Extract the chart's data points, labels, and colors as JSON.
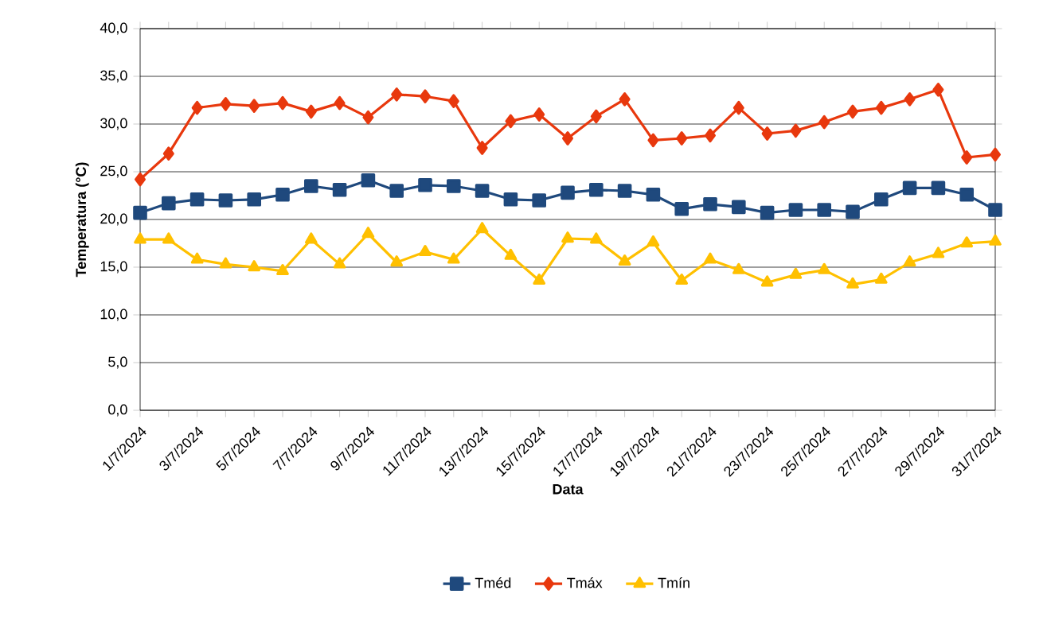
{
  "chart_data": {
    "type": "line",
    "xlabel": "Data",
    "ylabel": "Temperatura (°C)",
    "categories": [
      "1/7/2024",
      null,
      "3/7/2024",
      null,
      "5/7/2024",
      null,
      "7/7/2024",
      null,
      "9/7/2024",
      null,
      "11/7/2024",
      null,
      "13/7/2024",
      null,
      "15/7/2024",
      null,
      "17/7/2024",
      null,
      "19/7/2024",
      null,
      "21/7/2024",
      null,
      "23/7/2024",
      null,
      "25/7/2024",
      null,
      "27/7/2024",
      null,
      "29/7/2024",
      null,
      "31/7/2024"
    ],
    "series": [
      {
        "name": "Tméd",
        "color": "#1f497d",
        "marker": "square",
        "values": [
          20.7,
          21.7,
          22.1,
          22.0,
          22.1,
          22.6,
          23.5,
          23.1,
          24.1,
          23.0,
          23.6,
          23.5,
          23.0,
          22.1,
          22.0,
          22.8,
          23.1,
          23.0,
          22.6,
          21.1,
          21.6,
          21.3,
          20.7,
          21.0,
          21.0,
          20.8,
          22.1,
          23.3,
          23.3,
          22.6,
          21.0
        ]
      },
      {
        "name": "Tmáx",
        "color": "#e8380d",
        "marker": "diamond",
        "values": [
          24.2,
          26.9,
          31.7,
          32.1,
          31.9,
          32.2,
          31.3,
          32.2,
          30.7,
          33.1,
          32.9,
          32.4,
          27.5,
          30.3,
          31.0,
          28.5,
          30.8,
          32.6,
          28.3,
          28.5,
          28.8,
          31.7,
          29.0,
          29.3,
          30.2,
          31.3,
          31.7,
          32.6,
          33.6,
          26.5,
          26.8
        ]
      },
      {
        "name": "Tmín",
        "color": "#ffc000",
        "marker": "triangle",
        "values": [
          17.9,
          17.9,
          15.8,
          15.3,
          15.0,
          14.6,
          17.9,
          15.3,
          18.5,
          15.5,
          16.6,
          15.8,
          19.0,
          16.2,
          13.6,
          18.0,
          17.9,
          15.6,
          17.6,
          13.6,
          15.8,
          14.7,
          13.4,
          14.2,
          14.7,
          13.2,
          13.7,
          15.5,
          16.4,
          17.5,
          17.7
        ]
      }
    ],
    "ylim": [
      0,
      40
    ],
    "yticks": [
      {
        "value": 0,
        "label": "0,0"
      },
      {
        "value": 5,
        "label": "5,0"
      },
      {
        "value": 10,
        "label": "10,0"
      },
      {
        "value": 15,
        "label": "15,0"
      },
      {
        "value": 20,
        "label": "20,0"
      },
      {
        "value": 25,
        "label": "25,0"
      },
      {
        "value": 30,
        "label": "30,0"
      },
      {
        "value": 35,
        "label": "35,0"
      },
      {
        "value": 40,
        "label": "40,0"
      }
    ],
    "grid": "y",
    "legend": "bottom",
    "line_style": "solid"
  }
}
